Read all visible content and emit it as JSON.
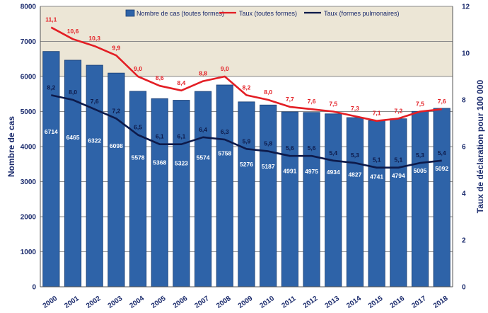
{
  "chart_data": {
    "type": "bar",
    "categories": [
      "2000",
      "2001",
      "2002",
      "2003",
      "2004",
      "2005",
      "2006",
      "2007",
      "2008",
      "2009",
      "2010",
      "2011",
      "2012",
      "2013",
      "2014",
      "2015",
      "2016",
      "2017",
      "2018"
    ],
    "series": [
      {
        "name": "Nombre de cas (toutes formes)",
        "type": "bar",
        "axis": "left",
        "values": [
          6714,
          6465,
          6322,
          6098,
          5578,
          5368,
          5323,
          5574,
          5758,
          5276,
          5187,
          4991,
          4975,
          4934,
          4827,
          4741,
          4794,
          5005,
          5092
        ],
        "labels": [
          "6714",
          "6465",
          "6322",
          "6098",
          "5578",
          "5368",
          "5323",
          "5574",
          "5758",
          "5276",
          "5187",
          "4991",
          "4975",
          "4934",
          "4827",
          "4741",
          "4794",
          "5005",
          "5092"
        ]
      },
      {
        "name": "Taux (toutes formes)",
        "type": "line",
        "axis": "right",
        "values": [
          11.1,
          10.6,
          10.3,
          9.9,
          9.0,
          8.6,
          8.4,
          8.8,
          9.0,
          8.2,
          8.0,
          7.7,
          7.6,
          7.5,
          7.3,
          7.1,
          7.2,
          7.5,
          7.6
        ],
        "labels": [
          "11,1",
          "10,6",
          "10,3",
          "9,9",
          "9,0",
          "8,6",
          "8,4",
          "8,8",
          "9,0",
          "8,2",
          "8,0",
          "7,7",
          "7,6",
          "7,5",
          "7,3",
          "7,1",
          "7,2",
          "7,5",
          "7,6"
        ]
      },
      {
        "name": "Taux (formes pulmonaires)",
        "type": "line",
        "axis": "right",
        "values": [
          8.2,
          8.0,
          7.6,
          7.2,
          6.5,
          6.1,
          6.1,
          6.4,
          6.3,
          5.9,
          5.8,
          5.6,
          5.6,
          5.4,
          5.3,
          5.1,
          5.1,
          5.3,
          5.4
        ],
        "labels": [
          "8,2",
          "8,0",
          "7,6",
          "7,2",
          "6,5",
          "6,1",
          "6,1",
          "6,4",
          "6,3",
          "5,9",
          "5,8",
          "5,6",
          "5,6",
          "5,4",
          "5,3",
          "5,1",
          "5,1",
          "5,3",
          "5,4"
        ]
      }
    ],
    "ylabel": "Nombre de cas",
    "y2label": "Taux de déclaration pour 100 000",
    "ylim": [
      0,
      8000
    ],
    "y2lim": [
      0,
      12
    ],
    "yticks": [
      "0",
      "1000",
      "2000",
      "3000",
      "4000",
      "5000",
      "6000",
      "7000",
      "8000"
    ],
    "y2ticks": [
      "0",
      "2",
      "4",
      "6",
      "8",
      "10",
      "12"
    ],
    "legend_position": "top-center",
    "grid": true,
    "colors": {
      "bar": "#2e63a8",
      "bar_edge": "#1b3f73",
      "rate_all": "#e31e24",
      "rate_pulmonary": "#0d1a4a",
      "band": "#ece6d6",
      "grid": "#8a8a8a",
      "axis_text": "#1a2a6c"
    }
  }
}
